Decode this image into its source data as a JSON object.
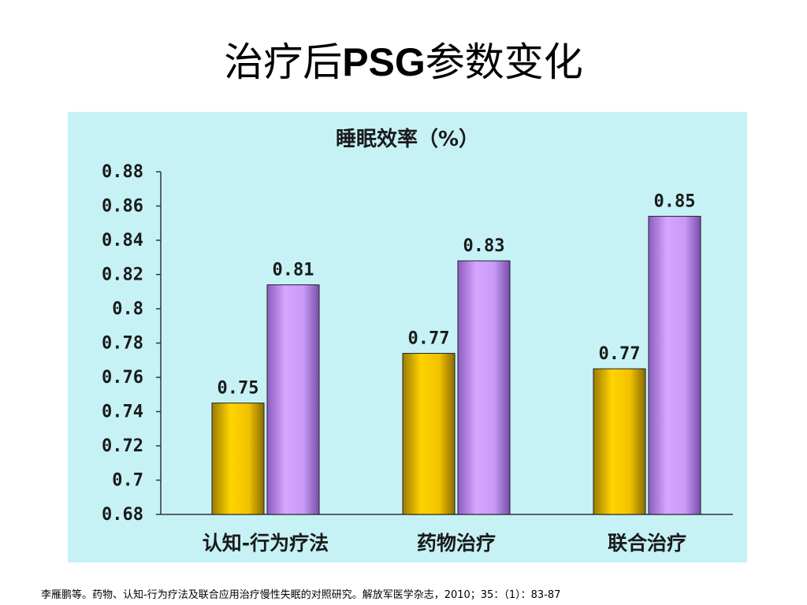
{
  "slide": {
    "title_cn_prefix": "治疗后",
    "title_latin": "PSG",
    "title_cn_suffix": "参数变化",
    "citation": "李雁鹏等。药物、认知-行为疗法及联合应用治疗慢性失眠的对照研究。解放军医学杂志，2010；35：（1）：83-87"
  },
  "chart_data": {
    "type": "bar",
    "title": "睡眠效率（%）",
    "xlabel": "",
    "ylabel": "",
    "categories": [
      "认知-行为疗法",
      "药物治疗",
      "联合治疗"
    ],
    "series": [
      {
        "values": [
          0.745,
          0.774,
          0.765
        ],
        "labels": [
          "0.75",
          "0.77",
          "0.77"
        ],
        "color": "#e8b800"
      },
      {
        "values": [
          0.814,
          0.828,
          0.854
        ],
        "labels": [
          "0.81",
          "0.83",
          "0.85"
        ],
        "color": "#c090f0"
      }
    ],
    "ylim": [
      0.68,
      0.88
    ],
    "yticks": [
      0.68,
      0.7,
      0.72,
      0.74,
      0.76,
      0.78,
      0.8,
      0.82,
      0.84,
      0.86,
      0.88
    ],
    "ytick_labels": [
      "0.68",
      "0.7",
      "0.72",
      "0.74",
      "0.76",
      "0.78",
      "0.8",
      "0.82",
      "0.84",
      "0.86",
      "0.88"
    ],
    "grid": false,
    "legend": "none"
  }
}
